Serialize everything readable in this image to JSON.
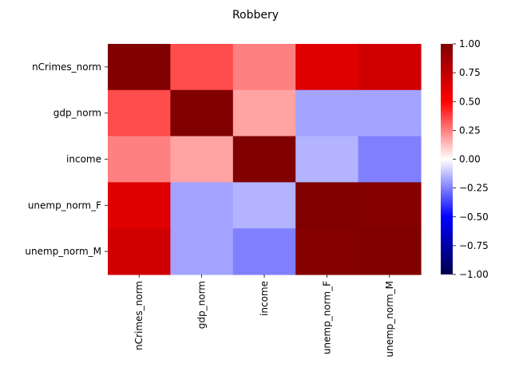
{
  "chart_data": {
    "type": "heatmap",
    "title": "Robbery",
    "xlabel": "",
    "ylabel": "",
    "rows": [
      "nCrimes_norm",
      "gdp_norm",
      "income",
      "unemp_norm_F",
      "unemp_norm_M"
    ],
    "columns": [
      "nCrimes_norm",
      "gdp_norm",
      "income",
      "unemp_norm_F",
      "unemp_norm_M"
    ],
    "values": [
      [
        1.0,
        0.35,
        0.25,
        0.62,
        0.68
      ],
      [
        0.35,
        1.0,
        0.18,
        -0.18,
        -0.18
      ],
      [
        0.25,
        0.18,
        1.0,
        -0.15,
        -0.25
      ],
      [
        0.62,
        -0.18,
        -0.15,
        1.0,
        0.98
      ],
      [
        0.68,
        -0.18,
        -0.25,
        0.98,
        1.0
      ]
    ],
    "colormap": "seismic",
    "vmin": -1.0,
    "vmax": 1.0,
    "colorbar": {
      "ticks": [
        1.0,
        0.75,
        0.5,
        0.25,
        0.0,
        -0.25,
        -0.5,
        -0.75,
        -1.0
      ],
      "tick_labels": [
        "1.00",
        "0.75",
        "0.50",
        "0.25",
        "0.00",
        "−0.25",
        "−0.50",
        "−0.75",
        "−1.00"
      ],
      "placement": "right"
    },
    "grid": false
  }
}
